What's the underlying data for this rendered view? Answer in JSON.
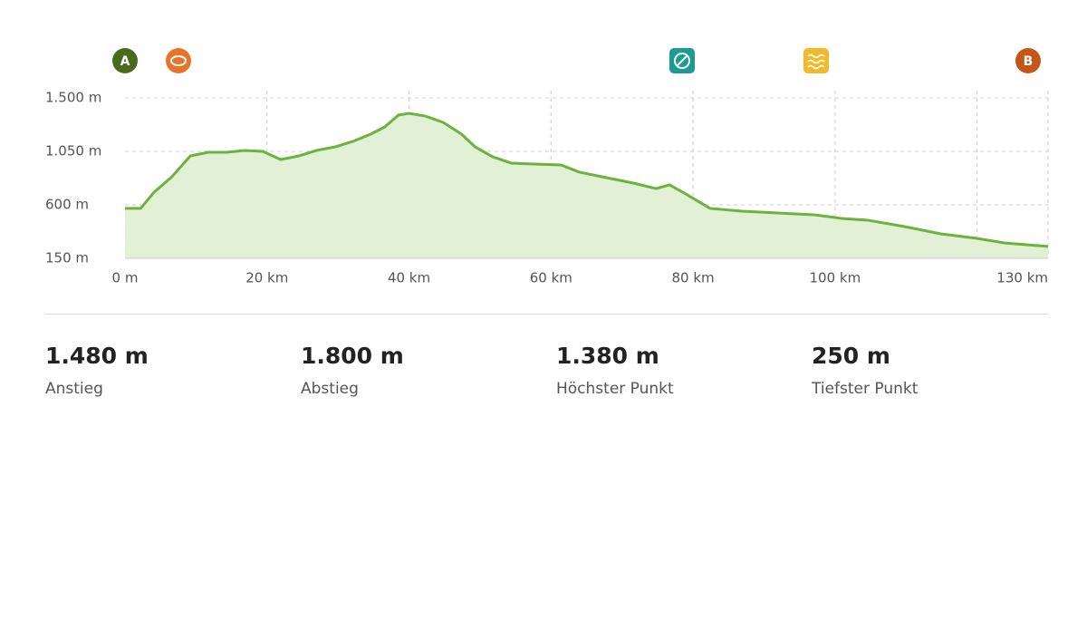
{
  "chart_data": {
    "type": "area",
    "start_label": "A",
    "end_label": "B",
    "x": [
      0,
      2.2,
      4.1,
      6.6,
      9.2,
      11.7,
      14.3,
      16.8,
      19.4,
      21.9,
      24.5,
      27.0,
      29.6,
      32.1,
      34.6,
      36.6,
      38.5,
      40,
      42.3,
      44.8,
      47.4,
      49.3,
      51.8,
      54.4,
      57.6,
      61.4,
      64,
      67.8,
      71.6,
      74.8,
      76.7,
      79.2,
      82.4,
      86.9,
      92,
      97.1,
      100.9,
      104.7,
      109.8,
      114.9,
      120,
      123.8,
      130
    ],
    "values": [
      570,
      570,
      707,
      836,
      1012,
      1042,
      1042,
      1058,
      1050,
      981,
      1012,
      1058,
      1088,
      1134,
      1195,
      1256,
      1355,
      1370,
      1347,
      1294,
      1195,
      1088,
      1004,
      951,
      943,
      936,
      875,
      829,
      783,
      737,
      768,
      684,
      570,
      547,
      531,
      516,
      486,
      470,
      417,
      356,
      318,
      280,
      250
    ],
    "color": "#6bb33c",
    "fill": "#e2f0d6",
    "xlim": [
      0,
      130
    ],
    "xticks": [
      {
        "value": 0,
        "label": "0 m"
      },
      {
        "value": 20,
        "label": "20 km"
      },
      {
        "value": 40,
        "label": "40 km"
      },
      {
        "value": 60,
        "label": "60 km"
      },
      {
        "value": 80,
        "label": "80 km"
      },
      {
        "value": 100,
        "label": "100 km"
      },
      {
        "value": 120,
        "label": null
      },
      {
        "value": 130,
        "label": "130 km"
      }
    ],
    "ylim": [
      150,
      1500
    ],
    "yticks": [
      {
        "value": 150,
        "label": "150 m"
      },
      {
        "value": 600,
        "label": "600 m"
      },
      {
        "value": 1050,
        "label": "1.050 m"
      },
      {
        "value": 1500,
        "label": "1.500 m"
      }
    ],
    "grid": true
  },
  "stats": [
    {
      "value": "1.480 m",
      "label": "Anstieg"
    },
    {
      "value": "1.800 m",
      "label": "Abstieg"
    },
    {
      "value": "1.380 m",
      "label": "Höchster Punkt"
    },
    {
      "value": "250 m",
      "label": "Tiefster Punkt"
    }
  ]
}
